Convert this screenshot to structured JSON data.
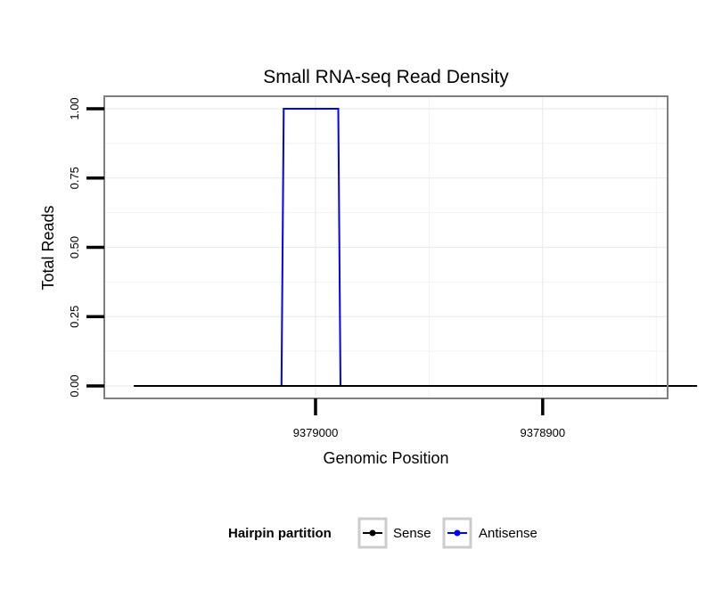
{
  "chart_data": {
    "type": "line",
    "title": "Small RNA-seq Read Density",
    "xlabel": "Genomic Position",
    "ylabel": "Total Reads",
    "x_reversed": true,
    "xlim": [
      9379093,
      9378845
    ],
    "ylim": [
      -0.045,
      1.045
    ],
    "x_ticks": [
      9379000,
      9378900
    ],
    "x_tick_labels": [
      "9379000",
      "9378900"
    ],
    "y_ticks": [
      0.0,
      0.25,
      0.5,
      0.75,
      1.0
    ],
    "y_tick_labels": [
      "0.00",
      "0.25",
      "0.50",
      "0.75",
      "1.00"
    ],
    "grid": true,
    "legend": {
      "title": "Hairpin partition",
      "position": "bottom"
    },
    "series": [
      {
        "name": "Sense",
        "color": "#000000",
        "x": [
          9379080,
          9378832
        ],
        "y": [
          0,
          0
        ]
      },
      {
        "name": "Antisense",
        "color": "#0000ff",
        "x": [
          9379015,
          9379014,
          9378990,
          9378989
        ],
        "y": [
          0,
          1,
          1,
          0
        ]
      }
    ]
  }
}
